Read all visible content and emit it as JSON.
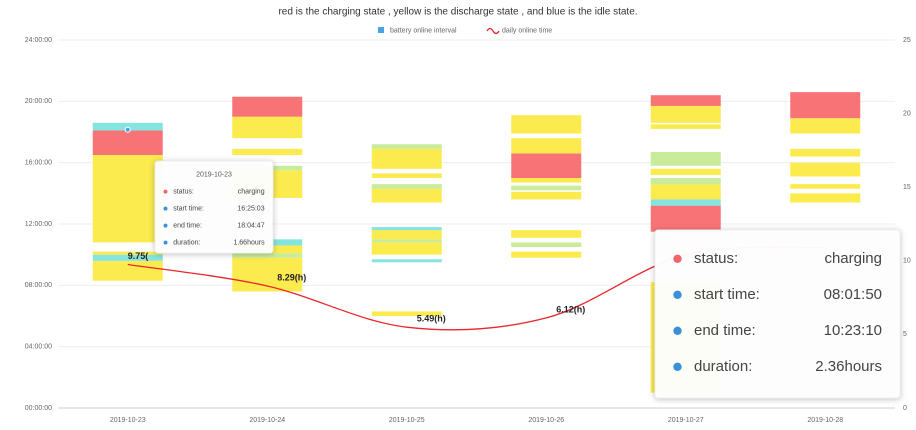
{
  "chart_data": {
    "type": "interval-line",
    "title": "red is the charging state , yellow is the discharge state , and blue is the idle state.",
    "legend": [
      {
        "name": "battery online interval",
        "color": "#4aa3df"
      },
      {
        "name": "daily online time",
        "color": "#e8262b"
      }
    ],
    "categories": [
      "2019-10-23",
      "2019-10-24",
      "2019-10-25",
      "2019-10-26",
      "2019-10-27",
      "2019-10-28"
    ],
    "ylim": [
      0,
      24
    ],
    "yticks": [
      {
        "value": 0,
        "label": "00:00:00"
      },
      {
        "value": 4,
        "label": "04:00:00"
      },
      {
        "value": 8,
        "label": "08:00:00"
      },
      {
        "value": 12,
        "label": "12:00:00"
      },
      {
        "value": 16,
        "label": "16:00:00"
      },
      {
        "value": 20,
        "label": "20:00:00"
      },
      {
        "value": 24,
        "label": "24:00:00"
      }
    ],
    "y2lim": [
      0,
      25
    ],
    "y2ticks": [
      0,
      5,
      10,
      15,
      20,
      25
    ],
    "intervals": [
      [
        {
          "start": 8.3,
          "end": 9.6,
          "color": "#fbeb4f"
        },
        {
          "start": 9.6,
          "end": 10.0,
          "color": "#86e4e0"
        },
        {
          "start": 10.0,
          "end": 10.2,
          "color": "#fbeb4f"
        },
        {
          "start": 10.8,
          "end": 16.5,
          "color": "#fbeb4f"
        },
        {
          "start": 16.5,
          "end": 18.1,
          "color": "#f87376"
        },
        {
          "start": 18.1,
          "end": 18.6,
          "color": "#86e4e0"
        }
      ],
      [
        {
          "start": 7.6,
          "end": 9.8,
          "color": "#fbeb4f"
        },
        {
          "start": 9.8,
          "end": 10.1,
          "color": "#c8ec9a"
        },
        {
          "start": 10.1,
          "end": 10.6,
          "color": "#fbeb4f"
        },
        {
          "start": 10.6,
          "end": 11.0,
          "color": "#86e4e0"
        },
        {
          "start": 13.7,
          "end": 15.5,
          "color": "#fbeb4f"
        },
        {
          "start": 15.5,
          "end": 15.8,
          "color": "#c8ec9a"
        },
        {
          "start": 16.5,
          "end": 16.9,
          "color": "#fbeb4f"
        },
        {
          "start": 17.6,
          "end": 19.0,
          "color": "#fbeb4f"
        },
        {
          "start": 19.0,
          "end": 20.3,
          "color": "#f87376"
        }
      ],
      [
        {
          "start": 6.0,
          "end": 6.3,
          "color": "#fbeb4f"
        },
        {
          "start": 9.5,
          "end": 9.7,
          "color": "#86e4e0"
        },
        {
          "start": 10.0,
          "end": 10.8,
          "color": "#fbeb4f"
        },
        {
          "start": 10.8,
          "end": 11.0,
          "color": "#c8ec9a"
        },
        {
          "start": 11.0,
          "end": 11.6,
          "color": "#fbeb4f"
        },
        {
          "start": 11.6,
          "end": 11.8,
          "color": "#86e4e0"
        },
        {
          "start": 13.4,
          "end": 14.3,
          "color": "#fbeb4f"
        },
        {
          "start": 14.3,
          "end": 14.6,
          "color": "#c8ec9a"
        },
        {
          "start": 15.0,
          "end": 15.3,
          "color": "#fbeb4f"
        },
        {
          "start": 15.6,
          "end": 16.9,
          "color": "#fbeb4f"
        },
        {
          "start": 16.9,
          "end": 17.2,
          "color": "#c8ec9a"
        }
      ],
      [
        {
          "start": 9.8,
          "end": 10.2,
          "color": "#fbeb4f"
        },
        {
          "start": 10.5,
          "end": 10.8,
          "color": "#c8ec9a"
        },
        {
          "start": 11.1,
          "end": 11.6,
          "color": "#fbeb4f"
        },
        {
          "start": 13.6,
          "end": 14.1,
          "color": "#fbeb4f"
        },
        {
          "start": 14.2,
          "end": 14.5,
          "color": "#c8ec9a"
        },
        {
          "start": 14.7,
          "end": 15.0,
          "color": "#fbeb4f"
        },
        {
          "start": 15.0,
          "end": 16.6,
          "color": "#f87376"
        },
        {
          "start": 16.6,
          "end": 17.6,
          "color": "#fbeb4f"
        },
        {
          "start": 17.9,
          "end": 19.1,
          "color": "#fbeb4f"
        }
      ],
      [
        {
          "start": 1.0,
          "end": 8.2,
          "color": "#fbeb4f"
        },
        {
          "start": 11.5,
          "end": 13.2,
          "color": "#f87376"
        },
        {
          "start": 13.2,
          "end": 13.6,
          "color": "#86e4e0"
        },
        {
          "start": 13.6,
          "end": 14.6,
          "color": "#fbeb4f"
        },
        {
          "start": 14.6,
          "end": 15.0,
          "color": "#c8ec9a"
        },
        {
          "start": 15.2,
          "end": 15.6,
          "color": "#fbeb4f"
        },
        {
          "start": 15.8,
          "end": 16.7,
          "color": "#c8ec9a"
        },
        {
          "start": 18.2,
          "end": 18.5,
          "color": "#fbeb4f"
        },
        {
          "start": 18.6,
          "end": 19.7,
          "color": "#fbeb4f"
        },
        {
          "start": 19.7,
          "end": 20.4,
          "color": "#f87376"
        }
      ],
      [
        {
          "start": 13.4,
          "end": 14.0,
          "color": "#fbeb4f"
        },
        {
          "start": 14.3,
          "end": 14.6,
          "color": "#fbeb4f"
        },
        {
          "start": 15.1,
          "end": 16.0,
          "color": "#fbeb4f"
        },
        {
          "start": 16.4,
          "end": 16.9,
          "color": "#fbeb4f"
        },
        {
          "start": 17.9,
          "end": 18.9,
          "color": "#fbeb4f"
        },
        {
          "start": 18.9,
          "end": 20.6,
          "color": "#f87376"
        }
      ]
    ],
    "series": [
      {
        "name": "daily online time",
        "color": "#e8262b",
        "axis": "y2",
        "values": [
          9.75,
          8.29,
          5.49,
          6.12,
          10.4,
          10.9
        ],
        "value_labels": [
          "9.75(",
          "8.29(h)",
          "5.49(h)",
          "6.12(h)",
          null,
          null
        ]
      }
    ],
    "tooltips": [
      {
        "title": "2019-10-23",
        "rows": [
          [
            "status:",
            "charging"
          ],
          [
            "start time:",
            "16:25:03"
          ],
          [
            "end time:",
            "18:04:47"
          ],
          [
            "duration:",
            "1.66hours"
          ]
        ]
      },
      {
        "rows": [
          [
            "status:",
            "charging"
          ],
          [
            "start time:",
            "08:01:50"
          ],
          [
            "end time:",
            "10:23:10"
          ],
          [
            "duration:",
            "2.36hours"
          ]
        ]
      }
    ]
  }
}
